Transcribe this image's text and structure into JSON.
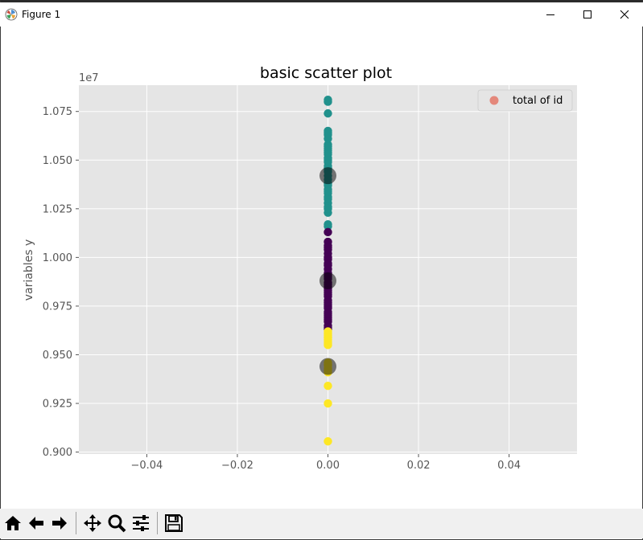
{
  "window": {
    "title": "Figure 1"
  },
  "chart_data": {
    "type": "scatter",
    "title": "basic scatter plot",
    "xlabel": "",
    "ylabel": "variables y",
    "y_offset_label": "1e7",
    "xlim": [
      -0.055,
      0.055
    ],
    "ylim": [
      8990000.0,
      10885000.0
    ],
    "xticks": [
      -0.04,
      -0.02,
      0.0,
      0.02,
      0.04
    ],
    "xtick_labels": [
      "−0.04",
      "−0.02",
      "0.00",
      "0.02",
      "0.04"
    ],
    "yticks": [
      9000000.0,
      9250000.0,
      9500000.0,
      9750000.0,
      10000000.0,
      10250000.0,
      10500000.0,
      10750000.0
    ],
    "ytick_labels": [
      "0.900",
      "0.925",
      "0.950",
      "0.975",
      "1.000",
      "1.025",
      "1.050",
      "1.075"
    ],
    "grid": true,
    "legend": {
      "location": "upper-right",
      "entries": [
        {
          "label": "total of id",
          "color": "#e24a33"
        }
      ]
    },
    "colors": {
      "axes_bg": "#e5e5e5",
      "grid": "#ffffff",
      "cluster_top": "#21918c",
      "cluster_mid": "#440154",
      "cluster_bottom": "#fde725",
      "centers": "#000000"
    },
    "series": [
      {
        "cluster": "top",
        "color": "#21918c",
        "x": [
          0,
          0,
          0,
          0,
          0,
          0,
          0,
          0,
          0,
          0,
          0,
          0,
          0,
          0,
          0,
          0,
          0,
          0,
          0,
          0,
          0,
          0,
          0,
          0,
          0,
          0,
          0,
          0,
          0,
          0,
          0,
          0,
          0,
          0,
          0
        ],
        "y": [
          10810000,
          10800000,
          10740000,
          10650000,
          10630000,
          10610000,
          10580000,
          10560000,
          10550000,
          10530000,
          10510000,
          10490000,
          10470000,
          10460000,
          10440000,
          10420000,
          10400000,
          10380000,
          10370000,
          10350000,
          10330000,
          10310000,
          10300000,
          10280000,
          10260000,
          10230000,
          10170000,
          10160000,
          10540000,
          10500000,
          10450000,
          10340000,
          10250000,
          10640000,
          10570000
        ]
      },
      {
        "cluster": "middle",
        "color": "#440154",
        "x": [
          0,
          0,
          0,
          0,
          0,
          0,
          0,
          0,
          0,
          0,
          0,
          0,
          0,
          0,
          0,
          0,
          0,
          0,
          0,
          0,
          0,
          0,
          0,
          0,
          0,
          0,
          0,
          0,
          0,
          0,
          0,
          0,
          0,
          0,
          0,
          0,
          0,
          0
        ],
        "y": [
          10130000,
          10080000,
          10060000,
          10040000,
          10020000,
          10000000,
          9990000,
          9970000,
          9960000,
          9940000,
          9920000,
          9900000,
          9890000,
          9870000,
          9860000,
          9850000,
          9840000,
          9830000,
          9810000,
          9800000,
          9780000,
          9760000,
          9750000,
          9740000,
          9720000,
          9700000,
          9690000,
          9680000,
          9670000,
          9650000,
          9630000,
          9960000,
          10050000,
          9910000,
          9820000,
          9770000,
          9710000,
          9640000
        ]
      },
      {
        "cluster": "bottom",
        "color": "#fde725",
        "x": [
          0,
          0,
          0,
          0,
          0,
          0,
          0,
          0,
          0,
          0,
          0,
          0,
          0,
          0,
          0,
          0,
          0,
          0
        ],
        "y": [
          9620000,
          9610000,
          9600000,
          9590000,
          9580000,
          9570000,
          9560000,
          9550000,
          9460000,
          9450000,
          9430000,
          9420000,
          9410000,
          9340000,
          9250000,
          9055000,
          9590000,
          9445000
        ]
      },
      {
        "cluster": "centers",
        "color": "#000000",
        "alpha": 0.5,
        "x": [
          0,
          0,
          0
        ],
        "y": [
          10420000,
          9880000,
          9440000
        ]
      }
    ]
  }
}
